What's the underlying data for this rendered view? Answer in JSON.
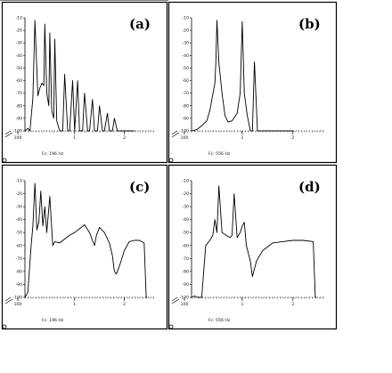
{
  "chart_data": [
    {
      "type": "line",
      "label": "(a)",
      "status": "Fc: 196 Hz",
      "xticks": [
        "100",
        "1",
        "2"
      ],
      "yticks": [
        "-10",
        "-20",
        "-30",
        "-40",
        "-50",
        "-60",
        "-70",
        "-80",
        "-90",
        "-100"
      ],
      "xlim": [
        0,
        2.6
      ],
      "ylim": [
        -100,
        -10
      ],
      "x": [
        0.0,
        0.06,
        0.1,
        0.16,
        0.2,
        0.26,
        0.3,
        0.34,
        0.38,
        0.4,
        0.44,
        0.48,
        0.5,
        0.54,
        0.58,
        0.6,
        0.64,
        0.7,
        0.76,
        0.8,
        0.86,
        0.9,
        0.96,
        1.0,
        1.06,
        1.1,
        1.16,
        1.2,
        1.26,
        1.3,
        1.36,
        1.4,
        1.46,
        1.5,
        1.56,
        1.6,
        1.66,
        1.7,
        1.76,
        1.8,
        1.86,
        1.9,
        2.0,
        2.1,
        2.2
      ],
      "y": [
        -100,
        -98,
        -100,
        -74,
        -12,
        -72,
        -66,
        -62,
        -64,
        -15,
        -70,
        -80,
        -22,
        -84,
        -90,
        -27,
        -92,
        -100,
        -100,
        -55,
        -100,
        -100,
        -60,
        -100,
        -60,
        -100,
        -100,
        -70,
        -100,
        -100,
        -75,
        -100,
        -100,
        -80,
        -100,
        -100,
        -86,
        -100,
        -100,
        -90,
        -100,
        -100,
        -100,
        -100,
        -100
      ]
    },
    {
      "type": "line",
      "label": "(b)",
      "status": "Fc: 556 Hz",
      "xticks": [
        "100",
        "1",
        "2"
      ],
      "yticks": [
        "-10",
        "-20",
        "-30",
        "-40",
        "-50",
        "-60",
        "-70",
        "-80",
        "-90",
        "-100"
      ],
      "xlim": [
        0,
        2.6
      ],
      "ylim": [
        -100,
        -10
      ],
      "x": [
        0.0,
        0.1,
        0.2,
        0.3,
        0.36,
        0.4,
        0.46,
        0.48,
        0.5,
        0.54,
        0.6,
        0.66,
        0.72,
        0.8,
        0.9,
        0.96,
        1.0,
        1.04,
        1.1,
        1.16,
        1.2,
        1.24,
        1.3,
        1.4,
        1.6,
        1.8,
        2.0
      ],
      "y": [
        -100,
        -99,
        -96,
        -92,
        -84,
        -75,
        -62,
        -45,
        -12,
        -46,
        -70,
        -88,
        -93,
        -92,
        -86,
        -70,
        -13,
        -70,
        -88,
        -100,
        -100,
        -45,
        -100,
        -100,
        -100,
        -100,
        -100
      ]
    },
    {
      "type": "line",
      "label": "(c)",
      "status": "Fc: 196 Hz",
      "xticks": [
        "100",
        "1",
        "2"
      ],
      "yticks": [
        "-10",
        "-20",
        "-30",
        "-40",
        "-50",
        "-60",
        "-70",
        "-80",
        "-90",
        "-100"
      ],
      "xlim": [
        0,
        2.6
      ],
      "ylim": [
        -100,
        -10
      ],
      "x": [
        0.0,
        0.06,
        0.12,
        0.16,
        0.2,
        0.24,
        0.28,
        0.32,
        0.36,
        0.4,
        0.44,
        0.5,
        0.56,
        0.6,
        0.7,
        0.8,
        0.9,
        1.0,
        1.1,
        1.2,
        1.3,
        1.36,
        1.4,
        1.44,
        1.5,
        1.6,
        1.7,
        1.76,
        1.8,
        1.84,
        1.9,
        2.0,
        2.1,
        2.2,
        2.3,
        2.4,
        2.44,
        2.46
      ],
      "y": [
        -100,
        -96,
        -62,
        -45,
        -12,
        -48,
        -42,
        -18,
        -45,
        -30,
        -50,
        -22,
        -60,
        -57,
        -58,
        -55,
        -52,
        -50,
        -47,
        -44,
        -50,
        -56,
        -60,
        -52,
        -46,
        -50,
        -58,
        -68,
        -80,
        -82,
        -76,
        -64,
        -57,
        -56,
        -56,
        -58,
        -100,
        -100
      ]
    },
    {
      "type": "line",
      "label": "(d)",
      "status": "Fc: 556 Hz",
      "xticks": [
        "100",
        "1",
        "2"
      ],
      "yticks": [
        "-10",
        "-20",
        "-30",
        "-40",
        "-50",
        "-60",
        "-70",
        "-80",
        "-90",
        "-100"
      ],
      "xlim": [
        0,
        2.6
      ],
      "ylim": [
        -100,
        -10
      ],
      "x": [
        0.0,
        0.06,
        0.12,
        0.2,
        0.28,
        0.36,
        0.42,
        0.46,
        0.5,
        0.54,
        0.6,
        0.68,
        0.76,
        0.8,
        0.84,
        0.9,
        0.96,
        1.0,
        1.04,
        1.08,
        1.16,
        1.2,
        1.28,
        1.4,
        1.6,
        1.8,
        2.0,
        2.2,
        2.4,
        2.44,
        2.46
      ],
      "y": [
        -100,
        -99,
        -100,
        -100,
        -60,
        -56,
        -52,
        -40,
        -50,
        -14,
        -50,
        -52,
        -54,
        -52,
        -20,
        -54,
        -50,
        -45,
        -42,
        -60,
        -72,
        -84,
        -72,
        -64,
        -58,
        -57,
        -56,
        -56,
        -57,
        -100,
        -100
      ]
    }
  ]
}
